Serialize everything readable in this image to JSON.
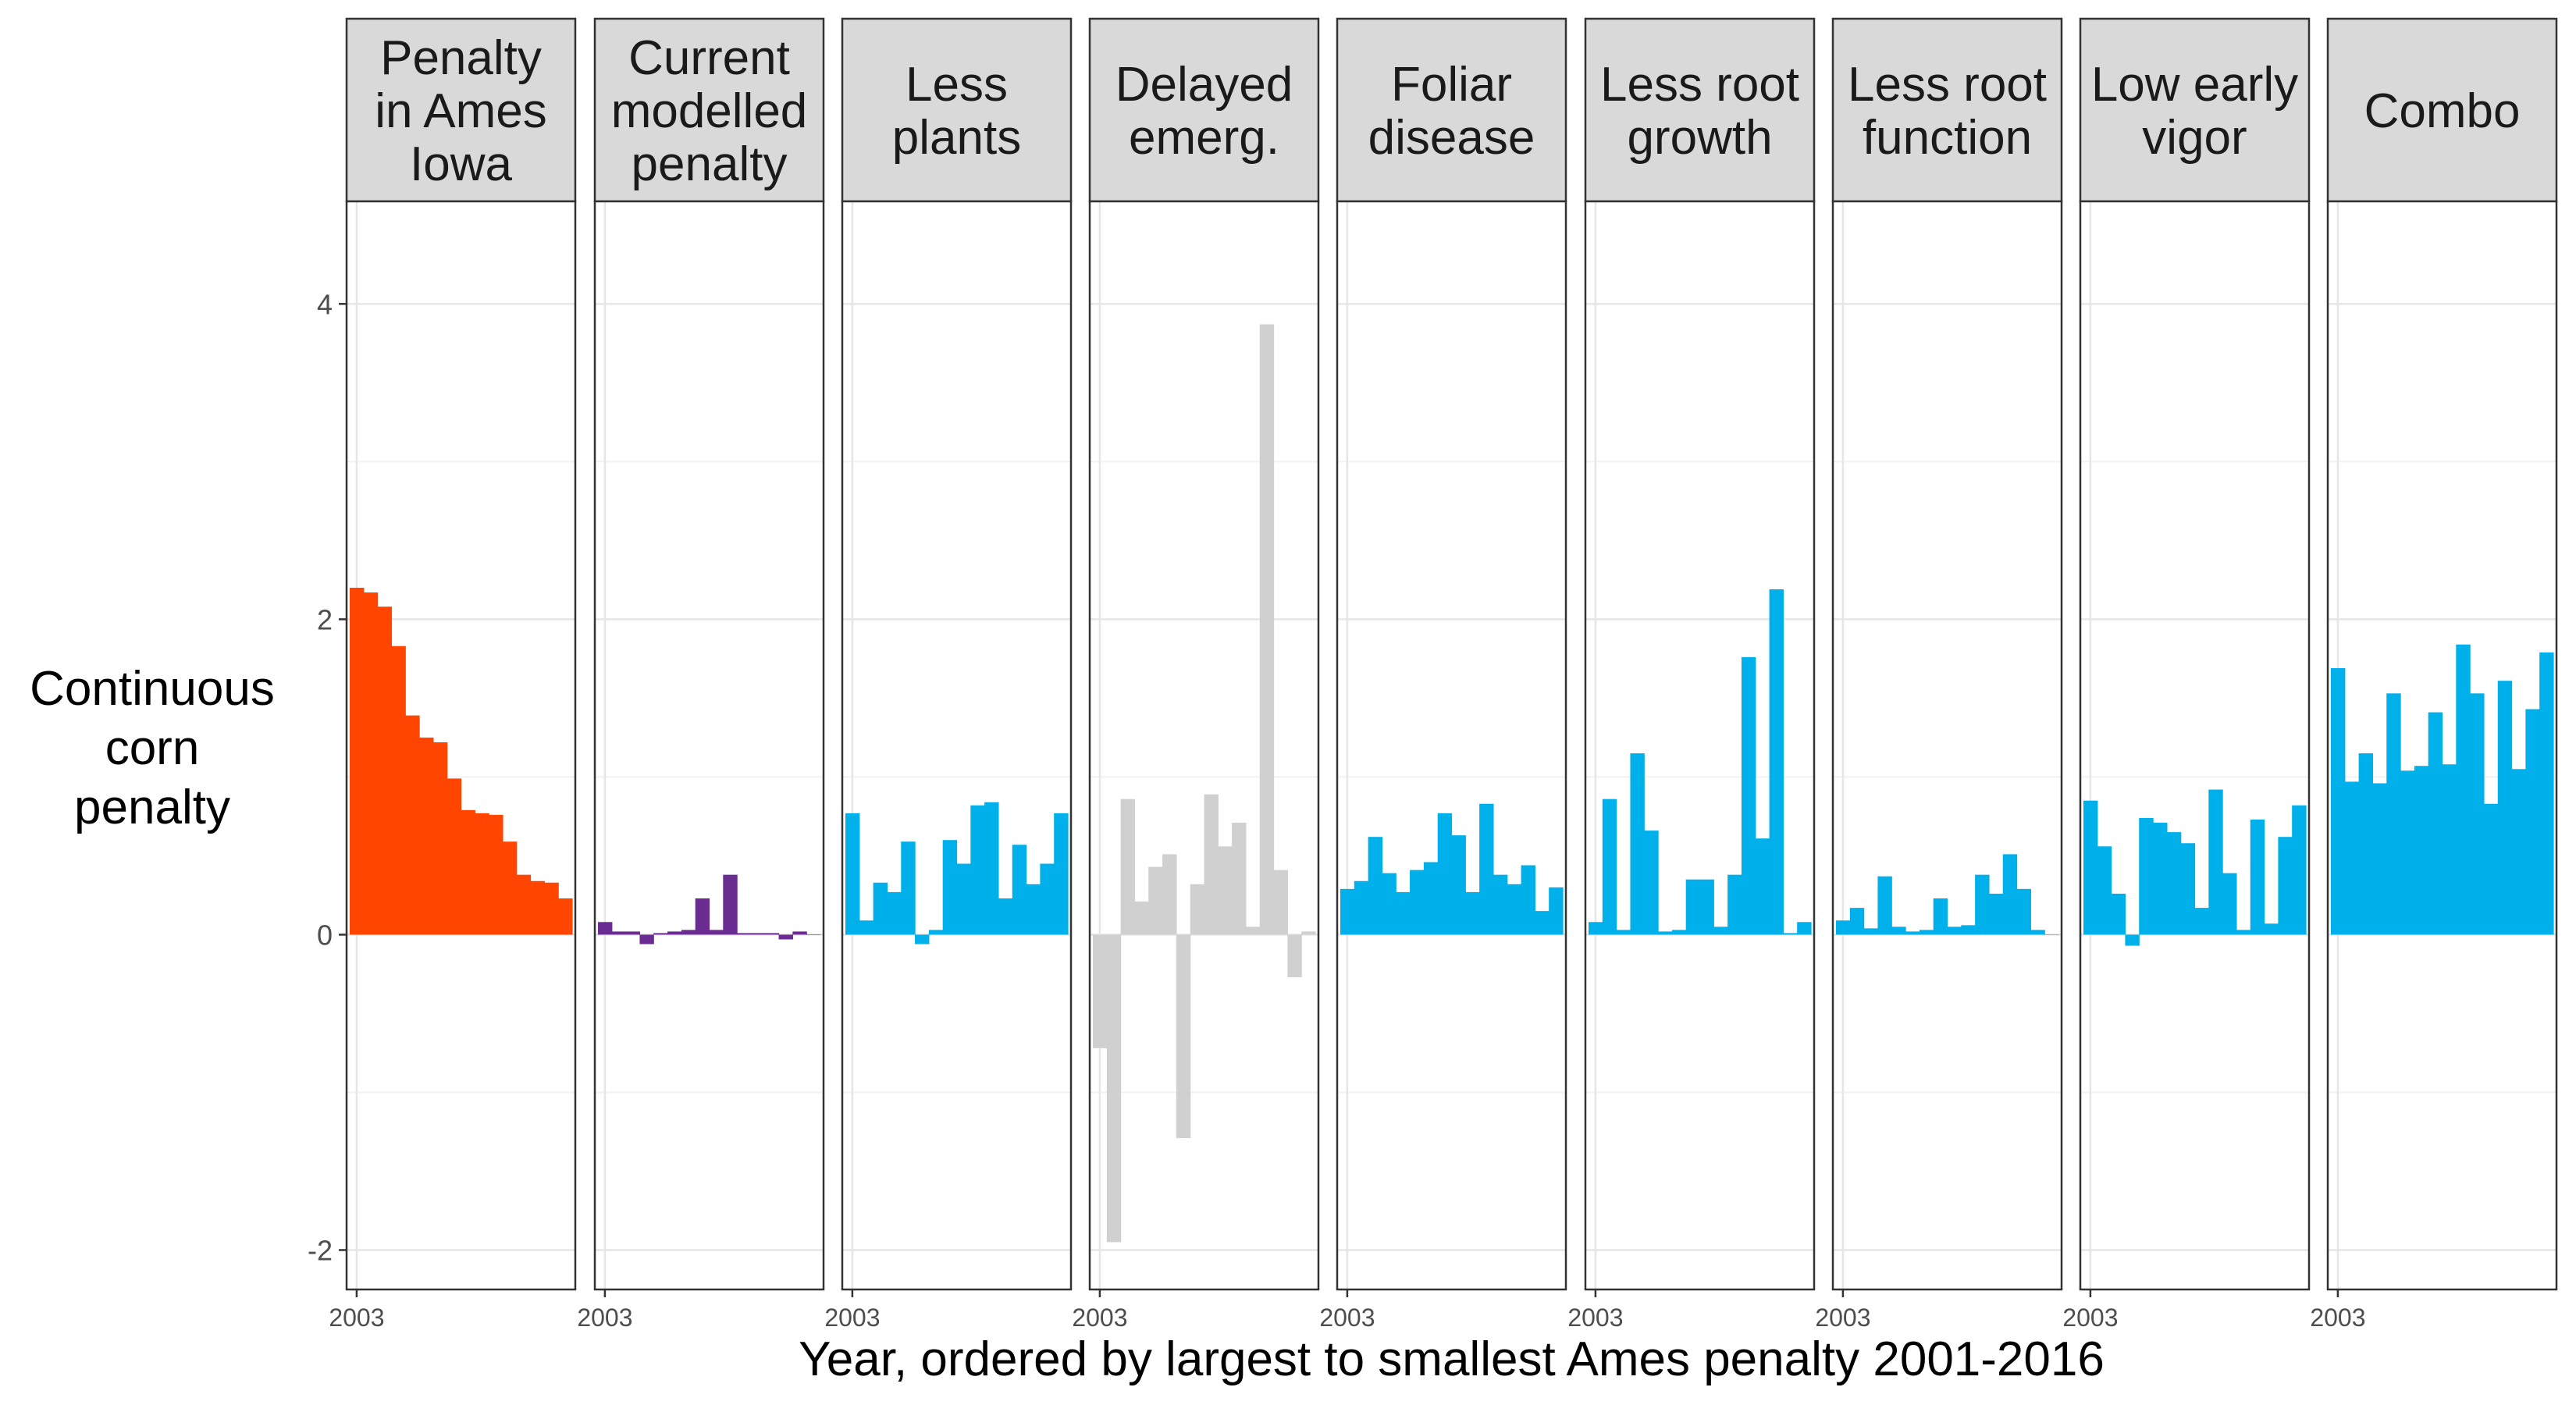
{
  "chart_data": {
    "type": "bar",
    "layout": "faceted",
    "xlabel": "Year, ordered by largest to smallest Ames penalty 2001-2016",
    "ylabel_lines": [
      "Continuous",
      "corn",
      "penalty"
    ],
    "ylim": [
      -2.0,
      4.0
    ],
    "y_ticks": [
      -2,
      0,
      2,
      4
    ],
    "x_tick_label": "2003",
    "grid": true,
    "legend": "none",
    "panels": [
      {
        "label_lines": [
          "Penalty",
          "in Ames",
          "Iowa"
        ],
        "color": "#FF4500",
        "values": [
          2.2,
          2.17,
          2.08,
          1.83,
          1.39,
          1.25,
          1.22,
          0.99,
          0.79,
          0.77,
          0.76,
          0.59,
          0.38,
          0.34,
          0.33,
          0.23
        ]
      },
      {
        "label_lines": [
          "Current",
          "modelled",
          "penalty"
        ],
        "color": "#6A2C91",
        "values": [
          0.08,
          0.02,
          0.02,
          -0.06,
          0.01,
          0.02,
          0.03,
          0.23,
          0.03,
          0.38,
          0.01,
          0.01,
          0.01,
          -0.03,
          0.02,
          0.0
        ]
      },
      {
        "label_lines": [
          "Less",
          "plants"
        ],
        "color": "#00B0EB",
        "values": [
          0.77,
          0.09,
          0.33,
          0.27,
          0.59,
          -0.06,
          0.03,
          0.6,
          0.45,
          0.82,
          0.84,
          0.23,
          0.57,
          0.32,
          0.45,
          0.77
        ]
      },
      {
        "label_lines": [
          "Delayed",
          "emerg."
        ],
        "color": "#D0D0D0",
        "values": [
          -0.72,
          -1.95,
          0.86,
          0.21,
          0.43,
          0.51,
          -1.29,
          0.32,
          0.89,
          0.56,
          0.71,
          0.05,
          3.87,
          0.41,
          -0.27,
          0.02
        ]
      },
      {
        "label_lines": [
          "Foliar",
          "disease"
        ],
        "color": "#00B0EB",
        "values": [
          0.29,
          0.34,
          0.62,
          0.39,
          0.27,
          0.41,
          0.46,
          0.77,
          0.63,
          0.27,
          0.83,
          0.38,
          0.32,
          0.44,
          0.15,
          0.3
        ]
      },
      {
        "label_lines": [
          "Less root",
          "growth"
        ],
        "color": "#00B0EB",
        "values": [
          0.08,
          0.86,
          0.03,
          1.15,
          0.66,
          0.02,
          0.03,
          0.35,
          0.35,
          0.05,
          0.38,
          1.76,
          0.61,
          2.19,
          0.01,
          0.08
        ]
      },
      {
        "label_lines": [
          "Less root",
          "function"
        ],
        "color": "#00B0EB",
        "values": [
          0.09,
          0.17,
          0.04,
          0.37,
          0.05,
          0.02,
          0.03,
          0.23,
          0.05,
          0.06,
          0.38,
          0.26,
          0.51,
          0.29,
          0.03,
          0.0
        ]
      },
      {
        "label_lines": [
          "Low early",
          "vigor"
        ],
        "color": "#00B0EB",
        "values": [
          0.85,
          0.56,
          0.26,
          -0.07,
          0.74,
          0.71,
          0.65,
          0.58,
          0.17,
          0.92,
          0.39,
          0.03,
          0.73,
          0.07,
          0.62,
          0.82
        ]
      },
      {
        "label_lines": [
          "Combo"
        ],
        "color": "#00B0EB",
        "values": [
          1.69,
          0.97,
          1.15,
          0.96,
          1.53,
          1.04,
          1.07,
          1.41,
          1.08,
          1.84,
          1.53,
          0.83,
          1.61,
          1.05,
          1.43,
          1.79
        ]
      }
    ]
  }
}
